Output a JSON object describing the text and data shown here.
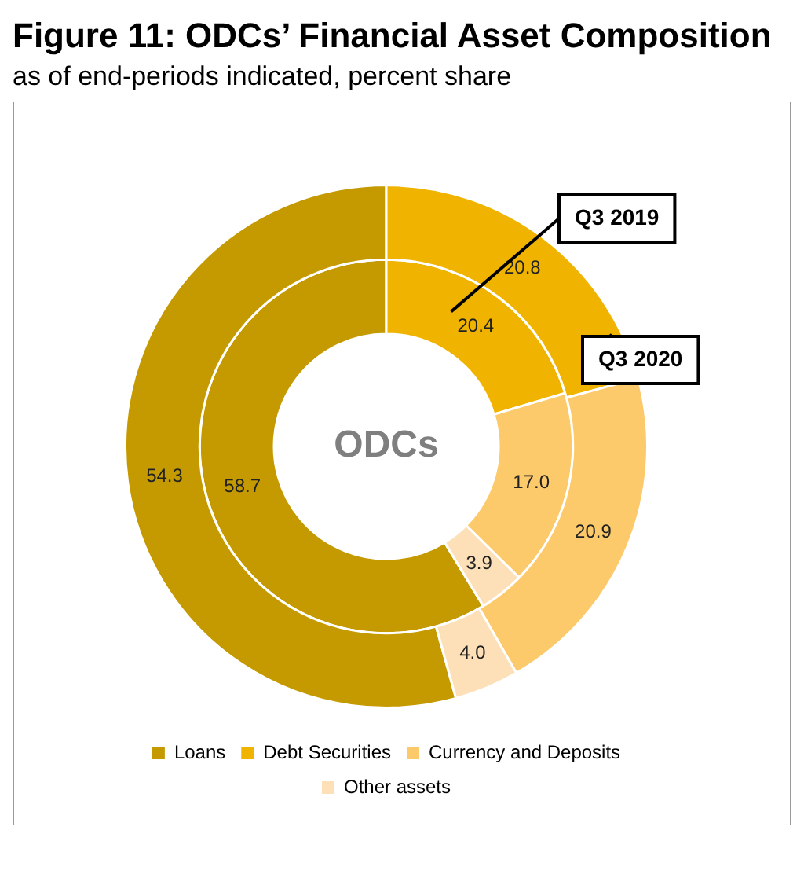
{
  "chart_data": {
    "type": "donut",
    "title": "Figure 11: ODCs’ Financial Asset Composition",
    "subtitle": "as of end-periods indicated, percent share",
    "annotations": [
      "ODCs"
    ],
    "categories": [
      "Loans",
      "Debt Securities",
      "Currency and Deposits",
      "Other assets"
    ],
    "colors": [
      "#c49a00",
      "#f0b400",
      "#fcc96b",
      "#fde0b8"
    ],
    "legend": "bottom",
    "series": [
      {
        "name": "Q3 2020",
        "values": [
          54.3,
          20.8,
          20.9,
          4.0
        ],
        "value_labels": [
          "54.3",
          "20.8",
          "20.9",
          "4.0"
        ]
      },
      {
        "name": "Q3 2019",
        "values": [
          58.7,
          20.4,
          17.0,
          3.9
        ],
        "value_labels": [
          "58.7",
          "20.4",
          "17.0",
          "3.9"
        ]
      }
    ]
  }
}
